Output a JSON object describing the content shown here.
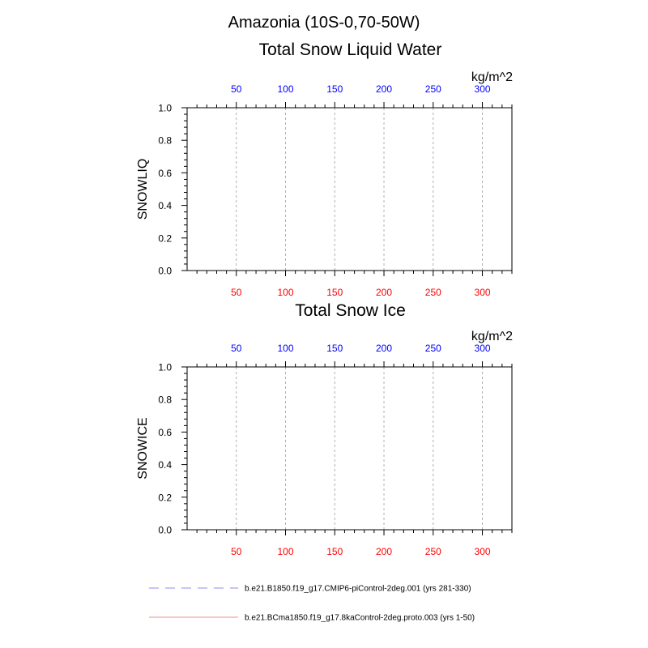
{
  "page": {
    "title": "Amazonia (10S-0,70-50W)"
  },
  "chart_data": [
    {
      "type": "line",
      "title": "Total Snow Liquid Water",
      "ylabel": "SNOWLIQ",
      "units": "kg/m^2",
      "xlim": [
        0,
        330
      ],
      "ylim": [
        0.0,
        1.0
      ],
      "x_ticks": [
        50,
        100,
        150,
        200,
        250,
        300
      ],
      "x_tick_labels": [
        "50",
        "100",
        "150",
        "200",
        "250",
        "300"
      ],
      "y_ticks": [
        0.0,
        0.2,
        0.4,
        0.6,
        0.8,
        1.0
      ],
      "y_tick_labels": [
        "0.0",
        "0.2",
        "0.4",
        "0.6",
        "0.8",
        "1.0"
      ],
      "top_axis_color": "#0000ff",
      "bottom_axis_color": "#ff0000",
      "grid": "vertical-dashed",
      "series": [
        {
          "name": "b.e21.B1850.f19_g17.CMIP6-piControl-2deg.001 (yrs 281-330)",
          "x": [
            0,
            330
          ],
          "y": [
            0.0,
            0.0
          ]
        },
        {
          "name": "b.e21.BCma1850.f19_g17.8kaControl-2deg.proto.003 (yrs 1-50)",
          "x": [
            0,
            330
          ],
          "y": [
            0.0,
            0.0
          ]
        }
      ]
    },
    {
      "type": "line",
      "title": "Total Snow Ice",
      "ylabel": "SNOWICE",
      "units": "kg/m^2",
      "xlim": [
        0,
        330
      ],
      "ylim": [
        0.0,
        1.0
      ],
      "x_ticks": [
        50,
        100,
        150,
        200,
        250,
        300
      ],
      "x_tick_labels": [
        "50",
        "100",
        "150",
        "200",
        "250",
        "300"
      ],
      "y_ticks": [
        0.0,
        0.2,
        0.4,
        0.6,
        0.8,
        1.0
      ],
      "y_tick_labels": [
        "0.0",
        "0.2",
        "0.4",
        "0.6",
        "0.8",
        "1.0"
      ],
      "top_axis_color": "#0000ff",
      "bottom_axis_color": "#ff0000",
      "grid": "vertical-dashed",
      "series": [
        {
          "name": "b.e21.B1850.f19_g17.CMIP6-piControl-2deg.001 (yrs 281-330)",
          "x": [
            0,
            330
          ],
          "y": [
            0.0,
            0.0
          ]
        },
        {
          "name": "b.e21.BCma1850.f19_g17.8kaControl-2deg.proto.003 (yrs 1-50)",
          "x": [
            0,
            330
          ],
          "y": [
            0.0,
            0.0
          ]
        }
      ]
    }
  ],
  "legend": {
    "placement": "bottom",
    "entries": [
      {
        "label": "b.e21.B1850.f19_g17.CMIP6-piControl-2deg.001 (yrs 281-330)",
        "color": "#8c8cf0",
        "style": "dashed"
      },
      {
        "label": "b.e21.BCma1850.f19_g17.8kaControl-2deg.proto.003 (yrs 1-50)",
        "color": "#f08c8c",
        "style": "solid"
      }
    ]
  }
}
